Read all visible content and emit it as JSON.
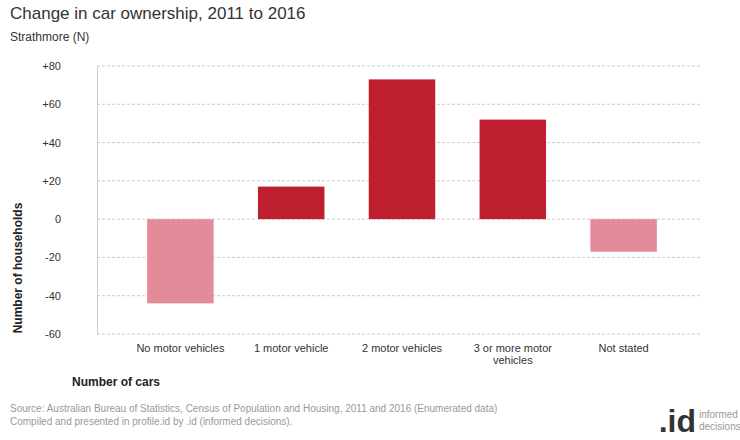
{
  "chart_data": {
    "type": "bar",
    "title": "Change in car ownership, 2011 to 2016",
    "subtitle": "Strathmore (N)",
    "x_label": "Number of cars",
    "y_label": "Number of households",
    "categories": [
      "No motor vehicles",
      "1 motor vehicle",
      "2 motor vehicles",
      "3 or more motor vehicles",
      "Not stated"
    ],
    "values": [
      -44,
      17,
      73,
      52,
      -17
    ],
    "colors": [
      "#e38b98",
      "#c01f2f",
      "#c01f2f",
      "#c01f2f",
      "#e38b98"
    ],
    "ylim": [
      -60,
      80
    ],
    "yticks": [
      {
        "value": 80,
        "label": "+80"
      },
      {
        "value": 60,
        "label": "+60"
      },
      {
        "value": 40,
        "label": "+40"
      },
      {
        "value": 20,
        "label": "+20"
      },
      0,
      -20,
      -40,
      -60
    ],
    "grid": true,
    "source": [
      "Source: Australian Bureau of Statistics, Census of Population and Housing, 2011 and 2016 (Enumerated data)",
      "Compiled and presented in profile.id by .id (informed decisions)."
    ],
    "logo": [
      ".id",
      "informed",
      "decisions"
    ]
  }
}
